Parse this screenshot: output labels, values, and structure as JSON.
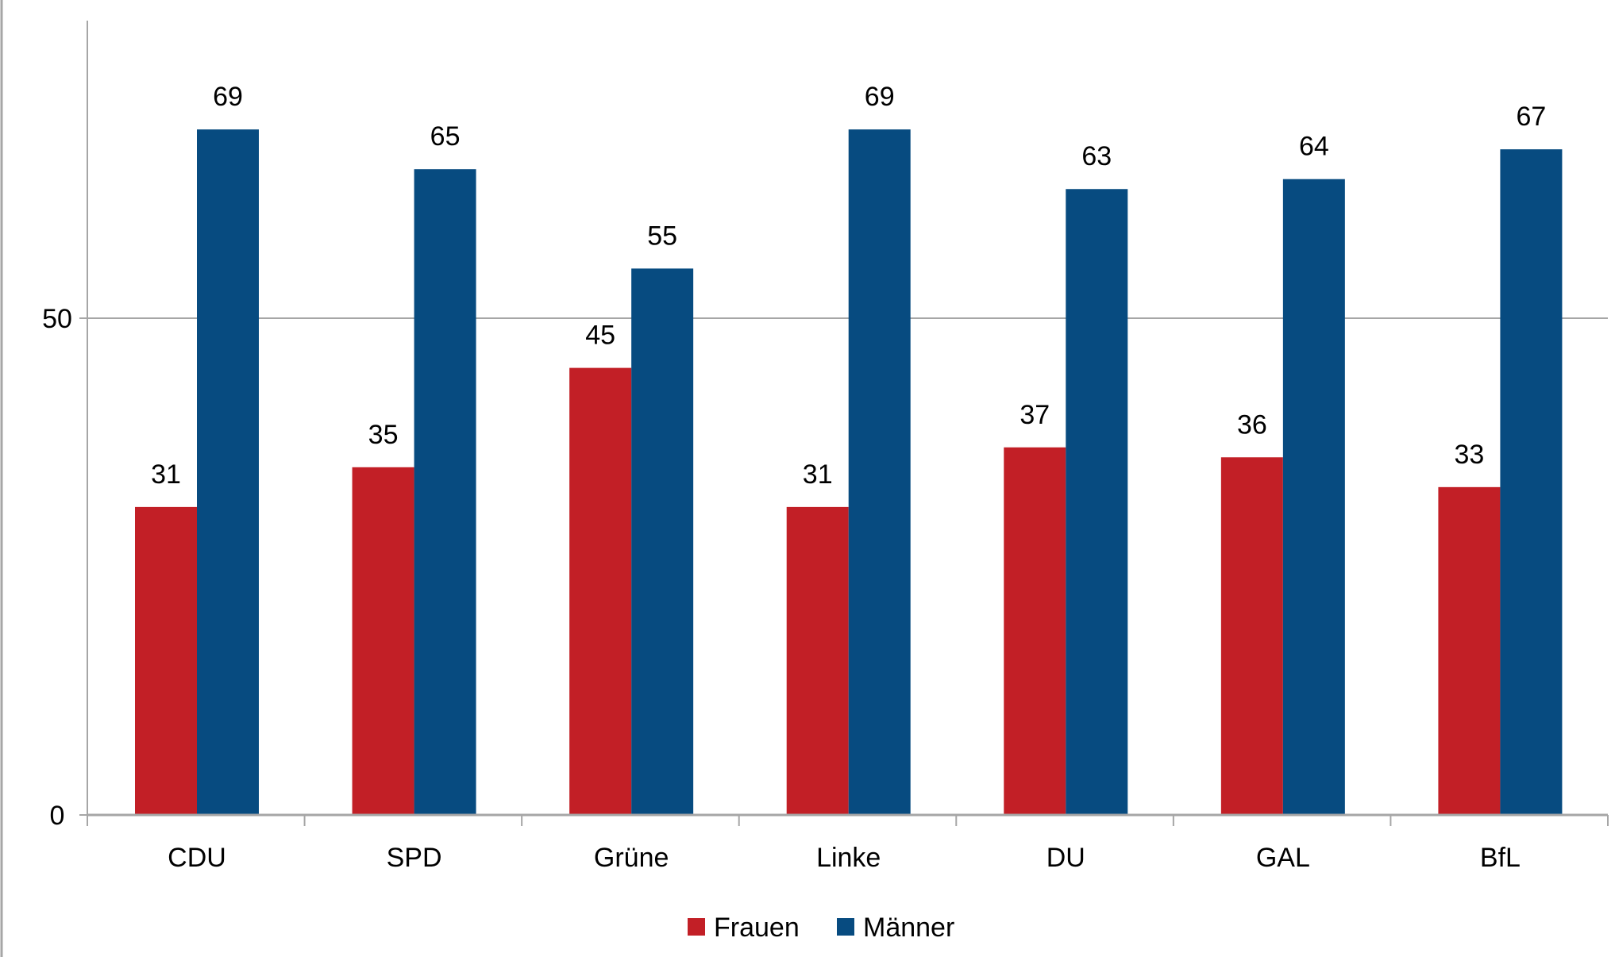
{
  "chart_data": {
    "type": "bar",
    "title": "",
    "xlabel": "",
    "ylabel": "",
    "categories": [
      "CDU",
      "SPD",
      "Grüne",
      "Linke",
      "DU",
      "GAL",
      "BfL"
    ],
    "series": [
      {
        "name": "Frauen",
        "color": "#c21f26",
        "values": [
          31,
          35,
          45,
          31,
          37,
          36,
          33
        ]
      },
      {
        "name": "Männer",
        "color": "#074b80",
        "values": [
          69,
          65,
          55,
          69,
          63,
          64,
          67
        ]
      }
    ],
    "ylim": [
      0,
      80
    ],
    "yticks": [
      0,
      50
    ],
    "grid": true,
    "legend": "bottom"
  }
}
